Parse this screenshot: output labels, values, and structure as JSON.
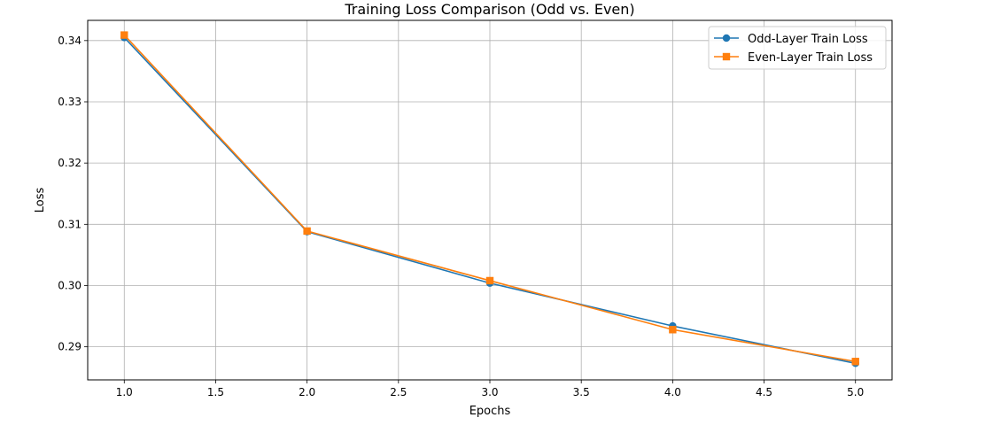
{
  "chart_data": {
    "type": "line",
    "title": "Training Loss Comparison (Odd vs. Even)",
    "xlabel": "Epochs",
    "ylabel": "Loss",
    "x": [
      1,
      2,
      3,
      4,
      5
    ],
    "xlim": [
      0.8,
      5.2
    ],
    "ylim": [
      0.2846,
      0.3433
    ],
    "xticks": [
      1.0,
      1.5,
      2.0,
      2.5,
      3.0,
      3.5,
      4.0,
      4.5,
      5.0
    ],
    "xtick_labels": [
      "1.0",
      "1.5",
      "2.0",
      "2.5",
      "3.0",
      "3.5",
      "4.0",
      "4.5",
      "5.0"
    ],
    "yticks": [
      0.29,
      0.3,
      0.31,
      0.32,
      0.33,
      0.34
    ],
    "ytick_labels": [
      "0.29",
      "0.30",
      "0.31",
      "0.32",
      "0.33",
      "0.34"
    ],
    "grid": true,
    "legend_position": "top-right",
    "series": [
      {
        "name": "Odd-Layer Train Loss",
        "values": [
          0.3405,
          0.3088,
          0.3004,
          0.2934,
          0.2873
        ],
        "color": "#1f77b4",
        "marker": "circle"
      },
      {
        "name": "Even-Layer Train Loss",
        "values": [
          0.3409,
          0.3089,
          0.3008,
          0.2928,
          0.2876
        ],
        "color": "#ff7f0e",
        "marker": "square"
      }
    ]
  }
}
